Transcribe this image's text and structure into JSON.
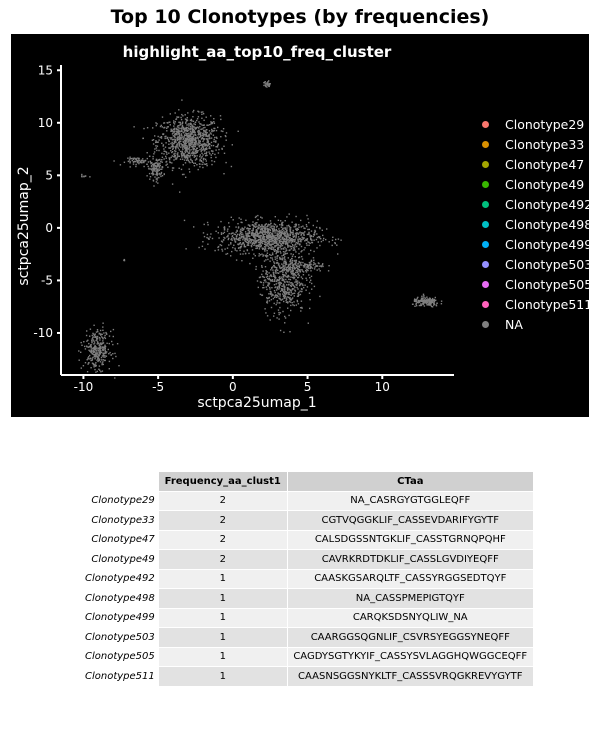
{
  "page_title": "Top 10 Clonotypes (by frequencies)",
  "chart_data": {
    "type": "scatter",
    "title": "highlight_aa_top10_freq_cluster",
    "xlabel": "sctpca25umap_1",
    "ylabel": "sctpca25umap_2",
    "xlim": [
      -11.5,
      14.8
    ],
    "ylim": [
      -14,
      15.5
    ],
    "x_ticks": [
      -10,
      -5,
      0,
      5,
      10
    ],
    "y_ticks": [
      15,
      10,
      5,
      0,
      -5,
      -10
    ],
    "background": "#000000",
    "point_color_na": "#7f7f7f",
    "grid": false,
    "legend_position": "right",
    "legend": [
      {
        "name": "Clonotype29",
        "color": "#F8766D"
      },
      {
        "name": "Clonotype33",
        "color": "#D89000"
      },
      {
        "name": "Clonotype47",
        "color": "#A3A500"
      },
      {
        "name": "Clonotype49",
        "color": "#39B600"
      },
      {
        "name": "Clonotype492",
        "color": "#00BF7D"
      },
      {
        "name": "Clonotype498",
        "color": "#00BFC4"
      },
      {
        "name": "Clonotype499",
        "color": "#00B0F6"
      },
      {
        "name": "Clonotype503",
        "color": "#9590FF"
      },
      {
        "name": "Clonotype505",
        "color": "#E76BF3"
      },
      {
        "name": "Clonotype511",
        "color": "#FF62BC"
      },
      {
        "name": "NA",
        "color": "#7f7f7f"
      }
    ],
    "clusters": [
      {
        "cx": -3,
        "cy": 8.3,
        "sx": 1.4,
        "sy": 1.6,
        "n": 900
      },
      {
        "cx": -5.2,
        "cy": 5.7,
        "sx": 0.35,
        "sy": 0.7,
        "n": 120
      },
      {
        "cx": -6.3,
        "cy": 6.4,
        "sx": 0.6,
        "sy": 0.25,
        "n": 60
      },
      {
        "cx": 2.3,
        "cy": -0.8,
        "sx": 2.2,
        "sy": 1.0,
        "n": 1000
      },
      {
        "cx": 3.3,
        "cy": -4.8,
        "sx": 1.0,
        "sy": 2.2,
        "n": 600
      },
      {
        "cx": 4.8,
        "cy": -3.6,
        "sx": 0.9,
        "sy": 0.4,
        "n": 120
      },
      {
        "cx": 12.9,
        "cy": -7.0,
        "sx": 0.6,
        "sy": 0.3,
        "n": 160
      },
      {
        "cx": -9.1,
        "cy": -11.5,
        "sx": 0.6,
        "sy": 1.2,
        "n": 300
      },
      {
        "cx": 2.2,
        "cy": 13.7,
        "sx": 0.2,
        "sy": 0.2,
        "n": 25
      },
      {
        "cx": -10.0,
        "cy": 5.0,
        "sx": 0.12,
        "sy": 0.1,
        "n": 10
      },
      {
        "cx": -7.3,
        "cy": -3.0,
        "sx": 0.05,
        "sy": 0.05,
        "n": 4
      }
    ]
  },
  "table": {
    "headers": [
      "Frequency_aa_clust1",
      "CTaa"
    ],
    "rows": [
      {
        "name": "Clonotype29",
        "freq": "2",
        "ctaa": "NA_CASRGYGTGGLEQFF"
      },
      {
        "name": "Clonotype33",
        "freq": "2",
        "ctaa": "CGTVQGGKLIF_CASSEVDARIFYGYTF"
      },
      {
        "name": "Clonotype47",
        "freq": "2",
        "ctaa": "CALSDGSSNTGKLIF_CASSTGRNQPQHF"
      },
      {
        "name": "Clonotype49",
        "freq": "2",
        "ctaa": "CAVRKRDTDKLIF_CASSLGVDIYEQFF"
      },
      {
        "name": "Clonotype492",
        "freq": "1",
        "ctaa": "CAASKGSARQLTF_CASSYRGGSEDTQYF"
      },
      {
        "name": "Clonotype498",
        "freq": "1",
        "ctaa": "NA_CASSPMEPIGTQYF"
      },
      {
        "name": "Clonotype499",
        "freq": "1",
        "ctaa": "CARQKSDSNYQLIW_NA"
      },
      {
        "name": "Clonotype503",
        "freq": "1",
        "ctaa": "CAARGGSQGNLIF_CSVRSYEGGSYNEQFF"
      },
      {
        "name": "Clonotype505",
        "freq": "1",
        "ctaa": "CAGDYSGTYKYIF_CASSYSVLAGGHQWGGCEQFF"
      },
      {
        "name": "Clonotype511",
        "freq": "1",
        "ctaa": "CAASNSGGSNYKLTF_CASSSVRQGKREVYGYTF"
      }
    ]
  }
}
